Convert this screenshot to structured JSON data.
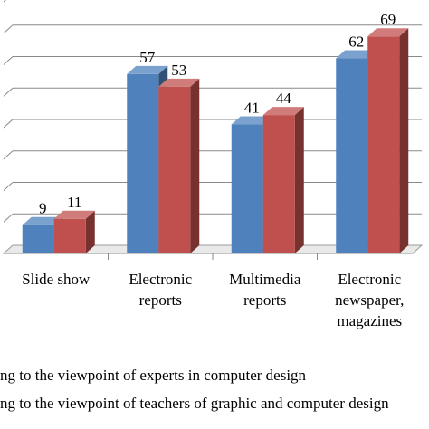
{
  "chart_data": {
    "type": "bar",
    "categories": [
      [
        "Slide show"
      ],
      [
        "Electronic",
        "reports"
      ],
      [
        "Multimedia",
        "reports"
      ],
      [
        "Electronic",
        "newspaper,",
        "magazines"
      ]
    ],
    "series": [
      {
        "name": "ng to the viewpoint of experts in computer design",
        "values": [
          9,
          57,
          41,
          62
        ],
        "color": "#4F81BD"
      },
      {
        "name": "ng to the viewpoint of teachers of graphic and computer design",
        "values": [
          11,
          53,
          44,
          69
        ],
        "color": "#C0504D"
      }
    ],
    "ylim": [
      0,
      80
    ],
    "grid": true,
    "legend_position": "bottom",
    "style": "3d-bar"
  }
}
